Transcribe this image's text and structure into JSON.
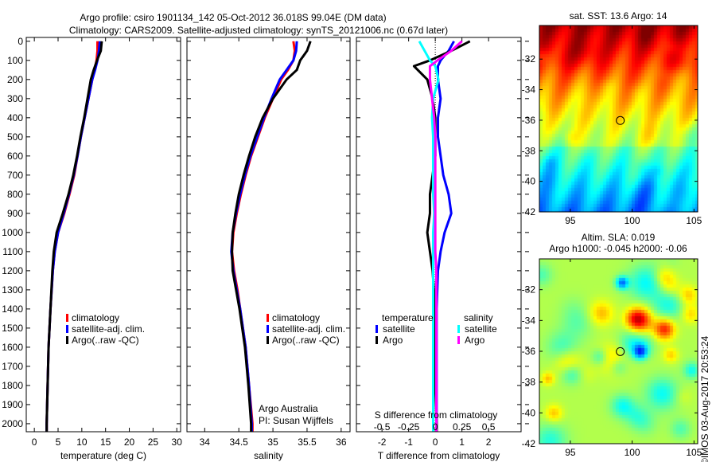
{
  "title_line1": "Argo profile: csiro 1901134_142 05-Oct-2012 36.018S 99.04E (DM data)",
  "title_line2": "Climatology: CARS2009. Satellite-adjusted climatology: synTS_20121006.nc (0.67d later)",
  "colors": {
    "climatology": "#ff0000",
    "satellite": "#0000ff",
    "argo": "#000000",
    "sal_satellite": "#00ffff",
    "sal_argo": "#ff00ff"
  },
  "chart_data": [
    {
      "type": "line",
      "name": "temperature",
      "xlabel": "temperature (deg C)",
      "xlim": [
        -1.7,
        30.8
      ],
      "ylim": [
        -20,
        2042
      ],
      "reversed_y": true,
      "xticks": [
        "0",
        "5",
        "10",
        "15",
        "20",
        "25",
        "30"
      ],
      "xtick_values": [
        0,
        5,
        10,
        15,
        20,
        25,
        30
      ],
      "yticks": [
        "0",
        "100",
        "200",
        "300",
        "400",
        "500",
        "600",
        "700",
        "800",
        "900",
        "1000",
        "1100",
        "1200",
        "1300",
        "1400",
        "1500",
        "1600",
        "1700",
        "1800",
        "1900",
        "2000"
      ],
      "depth": [
        0,
        50,
        100,
        150,
        200,
        300,
        400,
        500,
        600,
        700,
        800,
        900,
        1000,
        1100,
        1200,
        1400,
        1600,
        1800,
        2000,
        2040
      ],
      "series": [
        {
          "name": "climatology",
          "color": "#ff0000",
          "values": [
            13.3,
            13.3,
            13.1,
            12.7,
            12.2,
            11.4,
            10.6,
            9.8,
            9.1,
            8.4,
            7.4,
            6.3,
            5.0,
            4.3,
            3.9,
            3.4,
            3.0,
            2.8,
            2.6,
            2.6
          ]
        },
        {
          "name": "satellite-adj. clim.",
          "color": "#0000ff",
          "values": [
            13.8,
            13.6,
            13.3,
            12.8,
            12.2,
            11.4,
            10.6,
            9.8,
            9.1,
            8.3,
            7.3,
            6.2,
            5.0,
            4.3,
            3.9,
            3.4,
            3.0,
            2.8,
            2.6,
            2.6
          ]
        },
        {
          "name": "Argo(..raw -QC)",
          "color": "#000000",
          "values": [
            14.2,
            14.0,
            13.2,
            12.5,
            11.9,
            11.2,
            10.5,
            9.7,
            9.0,
            8.2,
            7.2,
            6.0,
            4.7,
            4.1,
            3.8,
            3.4,
            3.0,
            2.8,
            2.6,
            2.6
          ]
        }
      ],
      "legend": "bottom-right"
    },
    {
      "type": "line",
      "name": "salinity",
      "xlabel": "salinity",
      "xlim": [
        33.74,
        36.13
      ],
      "ylim": [
        -20,
        2042
      ],
      "xticks": [
        "34",
        "34.5",
        "35",
        "35.5",
        "36"
      ],
      "xtick_values": [
        34,
        34.5,
        35,
        35.5,
        36
      ],
      "depth": [
        0,
        50,
        100,
        150,
        200,
        300,
        400,
        500,
        600,
        700,
        800,
        900,
        1000,
        1100,
        1200,
        1300,
        1400,
        1500,
        1600,
        1800,
        2000,
        2040
      ],
      "series": [
        {
          "name": "climatology",
          "color": "#ff0000",
          "values": [
            35.3,
            35.32,
            35.3,
            35.22,
            35.12,
            35.0,
            34.88,
            34.78,
            34.68,
            34.6,
            34.53,
            34.47,
            34.42,
            34.4,
            34.43,
            34.48,
            34.52,
            34.56,
            34.6,
            34.65,
            34.7,
            34.7
          ]
        },
        {
          "name": "satellite-adj. clim.",
          "color": "#0000ff",
          "values": [
            35.35,
            35.34,
            35.3,
            35.2,
            35.1,
            34.98,
            34.87,
            34.77,
            34.67,
            34.59,
            34.52,
            34.46,
            34.41,
            34.39,
            34.42,
            34.47,
            34.52,
            34.56,
            34.6,
            34.65,
            34.69,
            34.69
          ]
        },
        {
          "name": "Argo(..raw -QC)",
          "color": "#000000",
          "values": [
            35.55,
            35.5,
            35.4,
            35.35,
            35.2,
            35.0,
            34.85,
            34.74,
            34.65,
            34.57,
            34.5,
            34.45,
            34.41,
            34.4,
            34.41,
            34.46,
            34.51,
            34.55,
            34.59,
            34.64,
            34.68,
            34.68
          ]
        }
      ],
      "annotations": [
        "Argo Australia",
        "PI: Susan Wijffels"
      ]
    },
    {
      "type": "line",
      "name": "difference",
      "xlabel": "T difference from climatology",
      "xlim": [
        -2.96,
        3.22
      ],
      "ylim": [
        -20,
        2042
      ],
      "xticks": [
        "-2",
        "-1",
        "0",
        "1",
        "2"
      ],
      "xtick_values": [
        -2,
        -1,
        0,
        1,
        2
      ],
      "top_xlabel": "S difference from climatology",
      "s_ticks": [
        "-0.5",
        "-0.25",
        "0",
        "0.25",
        "0.5"
      ],
      "s_tick_values": [
        -0.5,
        -0.25,
        0,
        0.25,
        0.5
      ],
      "depth": [
        0,
        50,
        100,
        130,
        200,
        300,
        400,
        500,
        600,
        700,
        800,
        900,
        1000,
        1100,
        1200,
        1400,
        1600,
        1800,
        2000,
        2040
      ],
      "series": [
        {
          "name": "temperature satellite",
          "color": "#0000ff",
          "unit": "T",
          "values": [
            0.7,
            0.5,
            0.2,
            0.1,
            0.1,
            0.2,
            0.1,
            0.1,
            0.2,
            0.3,
            0.5,
            0.6,
            0.35,
            0.2,
            0.1,
            0.05,
            0.05,
            0.05,
            0.05,
            0.05
          ]
        },
        {
          "name": "temperature Argo",
          "color": "#000000",
          "unit": "T",
          "values": [
            1.3,
            0.6,
            -0.2,
            -0.8,
            -0.3,
            -0.1,
            0,
            0,
            0,
            -0.1,
            -0.2,
            -0.2,
            -0.3,
            -0.2,
            -0.1,
            0,
            0,
            0,
            0.05,
            0.05
          ]
        },
        {
          "name": "salinity satellite",
          "color": "#00ffff",
          "unit": "S",
          "values": [
            -0.15,
            -0.1,
            -0.05,
            0,
            0.03,
            -0.02,
            -0.03,
            -0.02,
            -0.02,
            -0.02,
            -0.02,
            -0.01,
            -0.02,
            -0.02,
            -0.02,
            -0.02,
            -0.02,
            -0.02,
            -0.02,
            -0.02
          ]
        },
        {
          "name": "salinity Argo",
          "color": "#ff00ff",
          "unit": "S",
          "values": [
            0.25,
            0.15,
            0.02,
            -0.05,
            -0.05,
            -0.03,
            -0.01,
            0,
            0,
            0,
            0,
            0,
            0,
            0,
            0.01,
            0.01,
            0.01,
            0.01,
            0.01,
            0.01
          ]
        }
      ],
      "legend_headers": [
        "temperature",
        "salinity"
      ],
      "legend_labels": [
        "satellite",
        "Argo",
        "satellite",
        "Argo"
      ]
    },
    {
      "type": "heatmap",
      "name": "sst-map",
      "title": "sat. SST: 13.6 Argo: 14",
      "xlim": [
        92.5,
        105.3
      ],
      "ylim": [
        -42,
        -29.8
      ],
      "xticks": [
        "95",
        "100",
        "105"
      ],
      "xtick_values": [
        95,
        100,
        105
      ],
      "yticks": [
        "-32",
        "-34",
        "-36",
        "-38",
        "-40",
        "-42"
      ],
      "ytick_values": [
        -32,
        -34,
        -36,
        -38,
        -40,
        -42
      ],
      "marker": [
        99.04,
        -36.018
      ]
    },
    {
      "type": "heatmap",
      "name": "sla-map",
      "title": "Altim. SLA: 0.019",
      "subtitle": "Argo h1000: -0.045 h2000: -0.06",
      "xlim": [
        92.5,
        105.3
      ],
      "ylim": [
        -42,
        -30
      ],
      "xticks": [
        "95",
        "100",
        "105"
      ],
      "xtick_values": [
        95,
        100,
        105
      ],
      "yticks": [
        "-32",
        "-34",
        "-36",
        "-38",
        "-40",
        "-42"
      ],
      "ytick_values": [
        -32,
        -34,
        -36,
        -38,
        -40,
        -42
      ],
      "marker": [
        99.04,
        -36.018
      ]
    }
  ],
  "legend_labels": [
    "climatology",
    "satellite-adj. clim.",
    "Argo(..raw -QC)"
  ],
  "timestamp": "©IMOS 03-Aug-2017 20:53:24"
}
